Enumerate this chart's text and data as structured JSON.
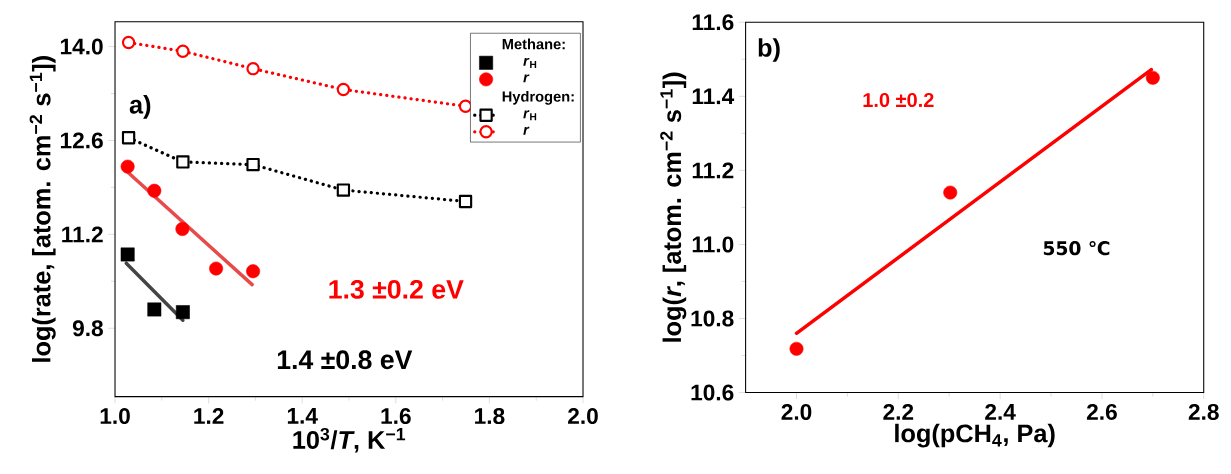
{
  "chart_data": [
    {
      "type": "scatter",
      "xlabel": "10$^{3}$/*T*, K$^{−1}$",
      "ylabel": "log(rate, [atom. cm$^{−2}$ s$^{−1}$])",
      "xlim": [
        1.0,
        2.0
      ],
      "ylim": [
        8.78,
        14.37
      ],
      "xticks": [
        {
          "value": 1.0,
          "label": "1.0"
        },
        1.2,
        1.4,
        1.6,
        1.8,
        {
          "value": 2.0,
          "label": "2.0"
        }
      ],
      "yticks": [
        {
          "value": 9.8,
          "label": "9.8"
        },
        {
          "value": 11.2,
          "label": "11.2"
        },
        {
          "value": 12.6,
          "label": "12.6"
        },
        {
          "value": 14.0,
          "label": "14.0"
        }
      ],
      "legend": "top right",
      "legend_title": "Methane:",
      "grid": false,
      "annotations": [
        "Hydrogen:",
        "a)",
        "1.3 ±0.2 eV",
        "1.4 ±0.8 eV"
      ],
      "series": [
        {
          "name": "*r*$_{H}$",
          "marker": "square",
          "color": "#000000",
          "x": [
            1.027,
            1.084,
            1.145
          ],
          "values": [
            10.9,
            10.08,
            10.04
          ]
        },
        {
          "name": "*r*",
          "marker": "circle",
          "color": "#ff0000",
          "x": [
            1.027,
            1.084,
            1.144,
            1.216,
            1.295
          ],
          "values": [
            12.21,
            11.85,
            11.28,
            10.69,
            10.65
          ]
        },
        {
          "name": "*r*$_{H}$",
          "type": "line",
          "marker": "square",
          "line_style": "dotted",
          "color": "#000000",
          "x": [
            1.029,
            1.145,
            1.295,
            1.488,
            1.749
          ],
          "values": [
            12.64,
            12.28,
            12.24,
            11.86,
            11.69
          ]
        },
        {
          "name": "*r*",
          "type": "line",
          "marker": "circle",
          "line_style": "dotted",
          "color": "#ff0000",
          "x": [
            1.029,
            1.145,
            1.295,
            1.488,
            1.749
          ],
          "values": [
            14.06,
            13.93,
            13.67,
            13.36,
            13.11
          ]
        },
        {
          "type": "line",
          "marker": "none",
          "line_style": "solid",
          "color": "#e84a4a",
          "x": [
            1.025,
            1.293
          ],
          "values": [
            12.14,
            10.45
          ]
        },
        {
          "type": "line",
          "marker": "none",
          "line_style": "solid",
          "color": "#444444",
          "x": [
            1.024,
            1.145
          ],
          "values": [
            10.77,
            9.92
          ]
        }
      ]
    },
    {
      "type": "scatter",
      "xlabel": "log(pCH$_{4}$, Pa)",
      "ylabel": "log(*r*, [atom. cm$^{−2}$ s$^{−1}$])",
      "xlim": [
        1.9,
        2.8
      ],
      "ylim": [
        10.6,
        11.6
      ],
      "xticks": [
        {
          "value": 2.0,
          "label": "2.0"
        },
        {
          "value": 2.2,
          "label": "2.2"
        },
        {
          "value": 2.4,
          "label": "2.4"
        },
        {
          "value": 2.6,
          "label": "2.6"
        },
        {
          "value": 2.8,
          "label": "2.8"
        }
      ],
      "yticks": [
        {
          "value": 10.6,
          "label": "10.6"
        },
        {
          "value": 10.8,
          "label": "10.8"
        },
        {
          "value": 11.0,
          "label": "11.0"
        },
        {
          "value": 11.2,
          "label": "11.2"
        },
        {
          "value": 11.4,
          "label": "11.4"
        },
        {
          "value": 11.6,
          "label": "11.6"
        }
      ],
      "legend": false,
      "grid": false,
      "annotations": [
        "b)",
        "1.0 ±0.2",
        "550 ℃"
      ],
      "series": [
        {
          "marker": "circle",
          "color": "#ff0000",
          "x": [
            2.0,
            2.302,
            2.7
          ],
          "values": [
            10.718,
            11.14,
            11.45
          ]
        },
        {
          "type": "line",
          "marker": "none",
          "line_style": "solid",
          "color": "#ff0000",
          "x": [
            2.0,
            2.697
          ],
          "values": [
            10.76,
            11.472
          ]
        }
      ]
    }
  ]
}
